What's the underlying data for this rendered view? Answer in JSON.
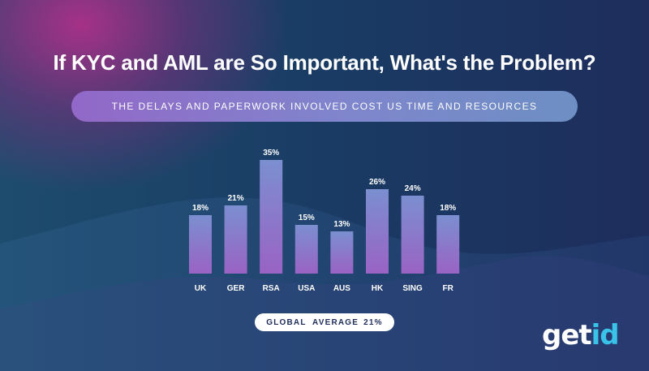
{
  "title": "If KYC and AML are So Important, What's the Problem?",
  "subtitle": "THE DELAYS AND PAPERWORK INVOLVED COST US TIME AND RESOURCES",
  "chart_data": {
    "type": "bar",
    "title": "",
    "xlabel": "",
    "ylabel": "",
    "ylim": [
      0,
      35
    ],
    "grid": false,
    "categories": [
      "UK",
      "GER",
      "RSA",
      "USA",
      "AUS",
      "HK",
      "SING",
      "FR"
    ],
    "values": [
      18,
      21,
      35,
      15,
      13,
      26,
      24,
      18
    ],
    "value_labels": [
      "18%",
      "21%",
      "35%",
      "15%",
      "13%",
      "26%",
      "24%",
      "18%"
    ],
    "bar_color_top": "#7b8fd0",
    "bar_color_bottom": "#9a63c4"
  },
  "average": {
    "label": "GLOBAL  AVERAGE",
    "value": "21%"
  },
  "logo": {
    "part1": "get",
    "part2": "id",
    "text": "getid"
  },
  "colors": {
    "accent": "#39c3e8",
    "pill_start": "#9268c8",
    "pill_end": "#6d8fc4"
  }
}
